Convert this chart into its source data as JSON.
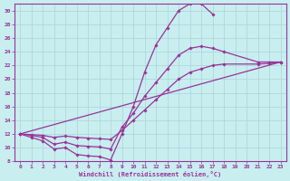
{
  "xlabel": "Windchill (Refroidissement éolien,°C)",
  "background_color": "#c8eef0",
  "grid_color": "#b0d8da",
  "line_color": "#993399",
  "xlim": [
    -0.5,
    23.5
  ],
  "ylim": [
    8,
    31
  ],
  "xticks": [
    0,
    1,
    2,
    3,
    4,
    5,
    6,
    7,
    8,
    9,
    10,
    11,
    12,
    13,
    14,
    15,
    16,
    17,
    18,
    19,
    20,
    21,
    22,
    23
  ],
  "yticks": [
    8,
    10,
    12,
    14,
    16,
    18,
    20,
    22,
    24,
    26,
    28,
    30
  ],
  "line1_x": [
    0,
    1,
    2,
    3,
    4,
    5,
    6,
    7,
    8,
    9,
    10,
    11,
    12,
    13,
    14,
    15,
    16,
    17
  ],
  "line1_y": [
    12.0,
    11.5,
    11.0,
    9.8,
    10.0,
    9.0,
    8.8,
    8.7,
    8.2,
    12.0,
    16.0,
    21.0,
    25.0,
    27.5,
    30.0,
    31.0,
    31.0,
    29.5
  ],
  "line2_x": [
    0,
    1,
    2,
    3,
    4,
    5,
    6,
    7,
    8,
    9,
    10,
    11,
    12,
    13,
    14,
    15,
    16,
    17,
    18,
    21,
    22,
    23
  ],
  "line2_y": [
    12.0,
    11.8,
    11.5,
    10.5,
    10.8,
    10.3,
    10.2,
    10.1,
    9.8,
    13.0,
    15.0,
    17.5,
    19.5,
    21.5,
    23.5,
    24.5,
    24.8,
    24.5,
    24.0,
    22.5,
    22.5,
    22.5
  ],
  "line3_x": [
    0,
    23
  ],
  "line3_y": [
    12.0,
    22.5
  ],
  "line4_x": [
    0,
    1,
    2,
    3,
    4,
    5,
    6,
    7,
    8,
    9,
    10,
    11,
    12,
    13,
    14,
    15,
    16,
    17,
    18,
    21,
    22,
    23
  ],
  "line4_y": [
    12.0,
    11.9,
    11.8,
    11.5,
    11.7,
    11.5,
    11.4,
    11.3,
    11.2,
    12.5,
    14.0,
    15.5,
    17.0,
    18.5,
    20.0,
    21.0,
    21.5,
    22.0,
    22.2,
    22.2,
    22.3,
    22.5
  ]
}
